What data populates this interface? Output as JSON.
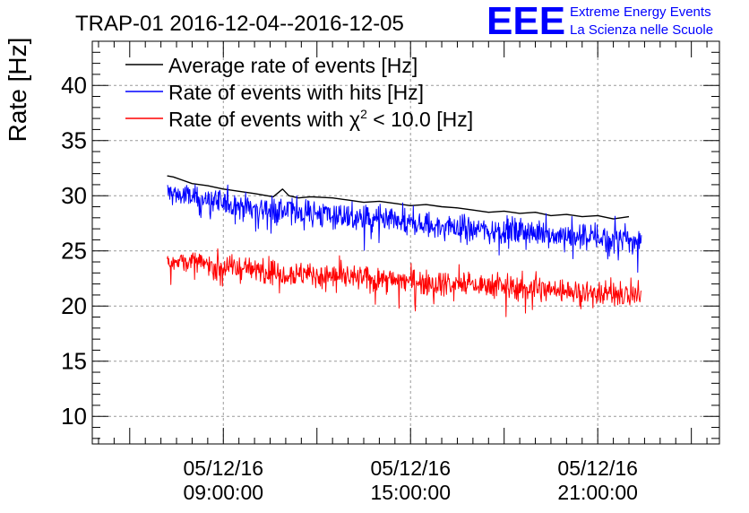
{
  "header": {
    "logo_text": "EEE",
    "logo_line1": "Extreme Energy Events",
    "logo_line2": "La Scienza nelle Scuole"
  },
  "chart_data": {
    "type": "line",
    "title": "TRAP-01 2016-12-04--2016-12-05",
    "xlabel": "",
    "ylabel": "Rate [Hz]",
    "xlim": [
      4.8,
      24.9
    ],
    "ylim": [
      7.5,
      44.0
    ],
    "grid": true,
    "legend_position": "top-left",
    "x_ticks": [
      {
        "x": 9,
        "date": "05/12/16",
        "time": "09:00:00"
      },
      {
        "x": 15,
        "date": "05/12/16",
        "time": "15:00:00"
      },
      {
        "x": 21,
        "date": "05/12/16",
        "time": "21:00:00"
      }
    ],
    "y_ticks": [
      10,
      15,
      20,
      25,
      30,
      35,
      40
    ],
    "legend": [
      {
        "prefix": "Average rate of events [Hz]",
        "suffix": ""
      },
      {
        "prefix": "Rate of events with hits [Hz]",
        "suffix": ""
      },
      {
        "prefix": "Rate of events with ",
        "chi": "χ",
        "sup": "2",
        "suffix": " < 10.0 [Hz]"
      }
    ],
    "series": [
      {
        "name": "Average rate of events [Hz]",
        "color": "#000000",
        "x": [
          7.2,
          7.4,
          7.7,
          8.0,
          8.5,
          9.0,
          9.5,
          10.0,
          10.6,
          10.9,
          11.1,
          11.4,
          11.8,
          12.5,
          13.0,
          13.5,
          14.0,
          14.5,
          15.0,
          15.5,
          16.0,
          16.5,
          17.0,
          17.5,
          18.0,
          18.5,
          19.0,
          19.5,
          20.0,
          20.5,
          21.0,
          21.5,
          22.0
        ],
        "y": [
          31.8,
          31.7,
          31.4,
          31.1,
          30.9,
          30.6,
          30.4,
          30.2,
          29.9,
          30.6,
          30.0,
          29.8,
          29.9,
          29.8,
          29.6,
          29.4,
          29.5,
          29.3,
          29.1,
          29.2,
          29.0,
          28.9,
          28.7,
          28.5,
          28.6,
          28.4,
          28.5,
          28.2,
          28.3,
          28.1,
          28.2,
          27.9,
          28.1
        ]
      },
      {
        "name": "Rate of events with hits [Hz]",
        "color": "#0000ff",
        "noise": 0.9,
        "x": [
          7.2,
          8.0,
          9.0,
          10.0,
          11.0,
          12.0,
          13.0,
          14.0,
          15.0,
          16.0,
          17.0,
          18.0,
          19.0,
          20.0,
          21.0,
          22.0,
          22.4
        ],
        "y": [
          30.3,
          29.8,
          29.3,
          28.9,
          28.6,
          28.4,
          28.0,
          27.7,
          27.4,
          27.2,
          27.0,
          26.8,
          26.6,
          26.4,
          26.2,
          26.0,
          25.9
        ]
      },
      {
        "name": "Rate of events with χ2 < 10.0 [Hz]",
        "color": "#ff0000",
        "noise": 0.8,
        "x": [
          7.2,
          8.0,
          9.0,
          10.0,
          11.0,
          12.0,
          13.0,
          14.0,
          15.0,
          16.0,
          17.0,
          18.0,
          19.0,
          20.0,
          21.0,
          22.0,
          22.4
        ],
        "y": [
          24.3,
          23.9,
          23.6,
          23.3,
          23.0,
          22.8,
          22.6,
          22.4,
          22.3,
          22.1,
          21.9,
          21.7,
          21.6,
          21.4,
          21.2,
          21.1,
          21.0
        ]
      }
    ]
  }
}
